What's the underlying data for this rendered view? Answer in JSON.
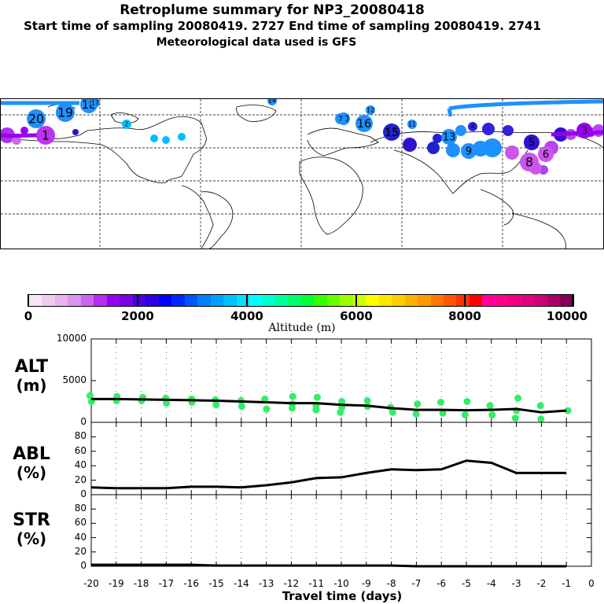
{
  "header": {
    "title": "Retroplume summary for NP3_20080418",
    "sampling": "Start time of sampling 20080419.  2727     End time of sampling 20080419.  2741",
    "meteo": "Meteorological data used is GFS"
  },
  "colorbar": {
    "title": "Altitude (m)",
    "labels": [
      "0",
      "2000",
      "4000",
      "6000",
      "8000",
      "10000"
    ],
    "colors": [
      "#f7e6f7",
      "#efcdf2",
      "#e6b3ee",
      "#da93ee",
      "#cc66ee",
      "#b52ef0",
      "#9a00f0",
      "#7a00e6",
      "#4a00dd",
      "#2a00e6",
      "#0000f5",
      "#0028ff",
      "#0055ff",
      "#0080ff",
      "#00a0ff",
      "#00c0ff",
      "#00e0ff",
      "#00ffff",
      "#00ffcc",
      "#00ff99",
      "#00ff66",
      "#00ff33",
      "#33ff00",
      "#66ff00",
      "#99ff00",
      "#ccff00",
      "#ffff00",
      "#ffe600",
      "#ffcc00",
      "#ffb300",
      "#ff9900",
      "#ff7700",
      "#ff5500",
      "#ff3300",
      "#ff0000",
      "#ff0099",
      "#ff0088",
      "#f00080",
      "#e00080",
      "#cc0077",
      "#aa0066",
      "#880055"
    ]
  },
  "map_labels": [
    {
      "t": "20"
    },
    {
      "t": "19"
    },
    {
      "t": "18"
    },
    {
      "t": "16"
    },
    {
      "t": "15"
    },
    {
      "t": "14"
    },
    {
      "t": "13"
    },
    {
      "t": "12"
    },
    {
      "t": "11"
    },
    {
      "t": "10"
    },
    {
      "t": "9"
    },
    {
      "t": "8"
    },
    {
      "t": "7"
    },
    {
      "t": "6"
    },
    {
      "t": "5"
    },
    {
      "t": "4"
    },
    {
      "t": "3"
    },
    {
      "t": "2"
    },
    {
      "t": "1"
    },
    {
      "t": "17"
    }
  ],
  "panels": {
    "alt": {
      "name": "ALT",
      "unit": "(m)"
    },
    "abl": {
      "name": "ABL",
      "unit": "(%)"
    },
    "str": {
      "name": "STR",
      "unit": "(%)"
    }
  },
  "chart_data": {
    "type": "line",
    "x": [
      -20,
      -19,
      -18,
      -17,
      -16,
      -15,
      -14,
      -13,
      -12,
      -11,
      -10,
      -9,
      -8,
      -7,
      -6,
      -5,
      -4,
      -3,
      -2,
      -1
    ],
    "xticks": [
      -20,
      -19,
      -18,
      -17,
      -16,
      -15,
      -14,
      -13,
      -12,
      -11,
      -10,
      -9,
      -8,
      -7,
      -6,
      -5,
      -4,
      -3,
      -2,
      -1,
      0
    ],
    "xtick_labels": [
      "-20",
      "-19",
      "-18",
      "-17",
      "-16",
      "-15",
      "-14",
      "-13",
      "-12",
      "-11",
      "-10",
      "-9",
      "-8",
      "-7",
      "-6",
      "-5",
      "-4",
      "-3",
      "-2",
      "-1",
      "0"
    ],
    "xlabel": "Travel time (days)",
    "xlim": [
      -20,
      0
    ],
    "alt": {
      "ylabel": "ALT (m)",
      "ylim": [
        0,
        10000
      ],
      "yticks": [
        "0",
        "5000",
        "10000"
      ],
      "mean": [
        2800,
        2800,
        2750,
        2700,
        2650,
        2600,
        2500,
        2400,
        2300,
        2300,
        2100,
        2000,
        1700,
        1500,
        1500,
        1450,
        1500,
        1600,
        1200,
        1400
      ],
      "cluster_points": [
        [
          -20,
          3200
        ],
        [
          -20,
          2500
        ],
        [
          -19,
          3100
        ],
        [
          -19,
          2600
        ],
        [
          -18,
          3000
        ],
        [
          -18,
          2600
        ],
        [
          -17,
          2900
        ],
        [
          -17,
          2300
        ],
        [
          -16,
          2800
        ],
        [
          -16,
          2400
        ],
        [
          -15,
          2700
        ],
        [
          -15,
          2100
        ],
        [
          -14,
          2600
        ],
        [
          -14,
          1900
        ],
        [
          -13,
          2800
        ],
        [
          -13,
          1600
        ],
        [
          -12,
          3100
        ],
        [
          -12,
          2200
        ],
        [
          -12,
          1700
        ],
        [
          -11,
          3000
        ],
        [
          -11,
          2000
        ],
        [
          -11,
          1500
        ],
        [
          -10,
          2500
        ],
        [
          -10,
          1800
        ],
        [
          -10,
          1200
        ],
        [
          -9,
          2600
        ],
        [
          -9,
          1900
        ],
        [
          -8,
          1800
        ],
        [
          -8,
          1200
        ],
        [
          -7,
          2200
        ],
        [
          -7,
          1000
        ],
        [
          -6,
          2400
        ],
        [
          -6,
          1100
        ],
        [
          -5,
          2500
        ],
        [
          -5,
          900
        ],
        [
          -4,
          2000
        ],
        [
          -4,
          900
        ],
        [
          -3,
          2900
        ],
        [
          -3,
          1400
        ],
        [
          -3,
          500
        ],
        [
          -2,
          2000
        ],
        [
          -2,
          400
        ],
        [
          -1,
          1400
        ]
      ]
    },
    "abl": {
      "ylabel": "ABL (%)",
      "ylim": [
        0,
        100
      ],
      "yticks": [
        "0",
        "20",
        "40",
        "60",
        "80"
      ],
      "values": [
        10,
        9,
        9,
        9,
        11,
        11,
        10,
        13,
        17,
        23,
        24,
        30,
        35,
        34,
        35,
        47,
        44,
        30,
        30,
        30
      ]
    },
    "str": {
      "ylabel": "STR (%)",
      "ylim": [
        0,
        100
      ],
      "yticks": [
        "0",
        "20",
        "40",
        "60",
        "80"
      ],
      "values": [
        2,
        2,
        2,
        2,
        2,
        1,
        1,
        1,
        1,
        1,
        1,
        1,
        1,
        0,
        0,
        0,
        0,
        0,
        0,
        0
      ]
    }
  }
}
